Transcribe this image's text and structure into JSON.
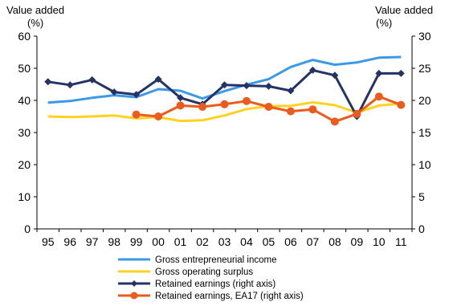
{
  "chart_data": {
    "type": "line",
    "left_axis_title": [
      "Value added",
      "(%)"
    ],
    "right_axis_title": [
      "Value added",
      "(%)"
    ],
    "categories": [
      "95",
      "96",
      "97",
      "98",
      "99",
      "00",
      "01",
      "02",
      "03",
      "04",
      "05",
      "06",
      "07",
      "08",
      "09",
      "10",
      "11"
    ],
    "y_left": {
      "min": 0,
      "max": 60,
      "ticks": [
        0,
        10,
        20,
        30,
        40,
        50,
        60
      ]
    },
    "y_right": {
      "min": 0,
      "max": 30,
      "ticks": [
        0,
        5,
        10,
        15,
        20,
        25,
        30
      ]
    },
    "grid": false,
    "legend_position": "bottom",
    "series": [
      {
        "name": "Gross entrepreneurial income",
        "axis": "left",
        "color": "#3a9ae8",
        "marker": "none",
        "values": [
          39.3,
          39.8,
          40.8,
          41.6,
          41.0,
          43.5,
          43.0,
          40.6,
          42.9,
          44.9,
          46.6,
          50.4,
          52.6,
          51.1,
          51.8,
          53.3,
          53.5
        ]
      },
      {
        "name": "Gross operating surplus",
        "axis": "left",
        "color": "#ffd21f",
        "marker": "none",
        "values": [
          35.0,
          34.8,
          35.0,
          35.3,
          34.4,
          34.8,
          33.6,
          33.8,
          35.3,
          37.3,
          38.2,
          38.3,
          39.4,
          38.5,
          36.2,
          38.4,
          39.0
        ]
      },
      {
        "name": "Retained earnings (right axis)",
        "axis": "right",
        "color": "#243365",
        "marker": "diamond",
        "values": [
          22.9,
          22.4,
          23.2,
          21.3,
          20.9,
          23.3,
          20.4,
          19.4,
          22.4,
          22.3,
          22.2,
          21.5,
          24.7,
          23.9,
          17.5,
          24.2,
          24.2
        ]
      },
      {
        "name": "Retained earnings, EA17 (right axis)",
        "axis": "right",
        "color": "#ec5a1c",
        "marker": "circle",
        "values": [
          null,
          null,
          null,
          null,
          17.8,
          17.5,
          19.2,
          19.0,
          19.4,
          19.9,
          19.0,
          18.3,
          18.6,
          16.7,
          17.9,
          20.6,
          19.3
        ]
      }
    ]
  }
}
